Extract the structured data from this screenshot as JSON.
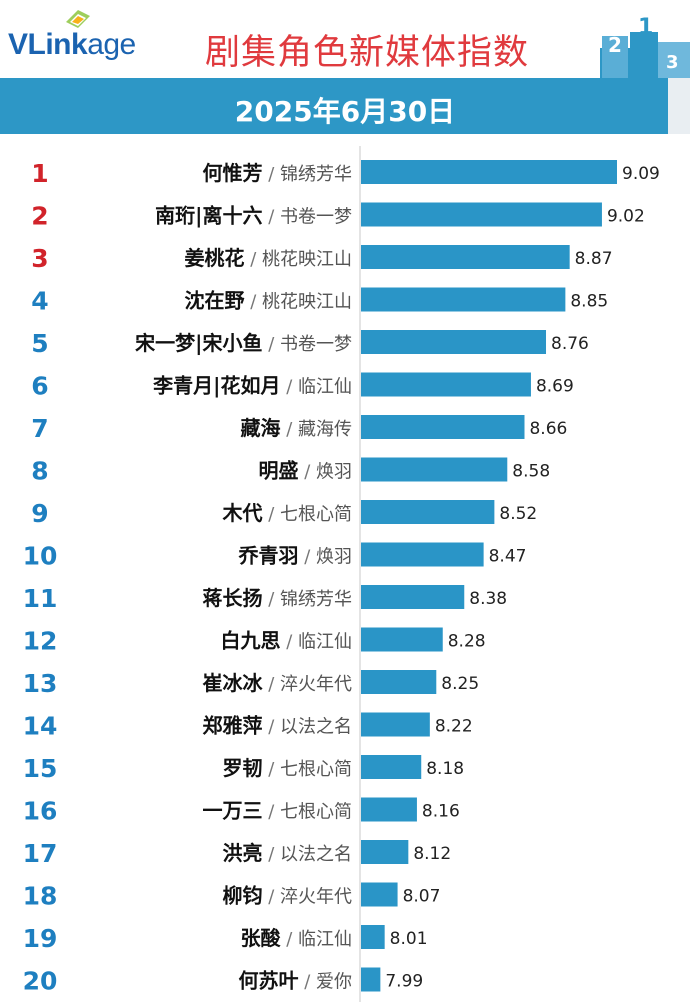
{
  "logo": {
    "part1": "VLink",
    "part2": "age"
  },
  "title": "剧集角色新媒体指数",
  "date": "2025年6月30日",
  "colors": {
    "bar": "#2a95c7",
    "rank_top": "#d1232a",
    "rank_rest": "#1e7fc0",
    "band": "#2d97c6"
  },
  "chart_data": {
    "type": "bar",
    "orientation": "horizontal",
    "title": "剧集角色新媒体指数",
    "subtitle": "2025年6月30日",
    "categories": [
      "何惟芳",
      "南珩|离十六",
      "姜桃花",
      "沈在野",
      "宋一梦|宋小鱼",
      "李青月|花如月",
      "藏海",
      "明盛",
      "木代",
      "乔青羽",
      "蒋长扬",
      "白九思",
      "崔冰冰",
      "郑雅萍",
      "罗韧",
      "一万三",
      "洪亮",
      "柳钧",
      "张酸",
      "何苏叶"
    ],
    "shows": [
      "锦绣芳华",
      "书卷一梦",
      "桃花映江山",
      "桃花映江山",
      "书卷一梦",
      "临江仙",
      "藏海传",
      "焕羽",
      "七根心简",
      "焕羽",
      "锦绣芳华",
      "临江仙",
      "淬火年代",
      "以法之名",
      "七根心简",
      "七根心简",
      "以法之名",
      "淬火年代",
      "临江仙",
      "爱你"
    ],
    "ranks": [
      "1",
      "2",
      "3",
      "4",
      "5",
      "6",
      "7",
      "8",
      "9",
      "10",
      "11",
      "12",
      "13",
      "14",
      "15",
      "16",
      "17",
      "18",
      "19",
      "20"
    ],
    "values": [
      9.09,
      9.02,
      8.87,
      8.85,
      8.76,
      8.69,
      8.66,
      8.58,
      8.52,
      8.47,
      8.38,
      8.28,
      8.25,
      8.22,
      8.18,
      8.16,
      8.12,
      8.07,
      8.01,
      7.99
    ],
    "value_labels": [
      "9.09",
      "9.02",
      "8.87",
      "8.85",
      "8.76",
      "8.69",
      "8.66",
      "8.58",
      "8.52",
      "8.47",
      "8.38",
      "8.28",
      "8.25",
      "8.22",
      "8.18",
      "8.16",
      "8.12",
      "8.07",
      "8.01",
      "7.99"
    ],
    "separator": " / ",
    "xlim": [
      7.9,
      9.09
    ],
    "grid": false,
    "legend": "none"
  }
}
